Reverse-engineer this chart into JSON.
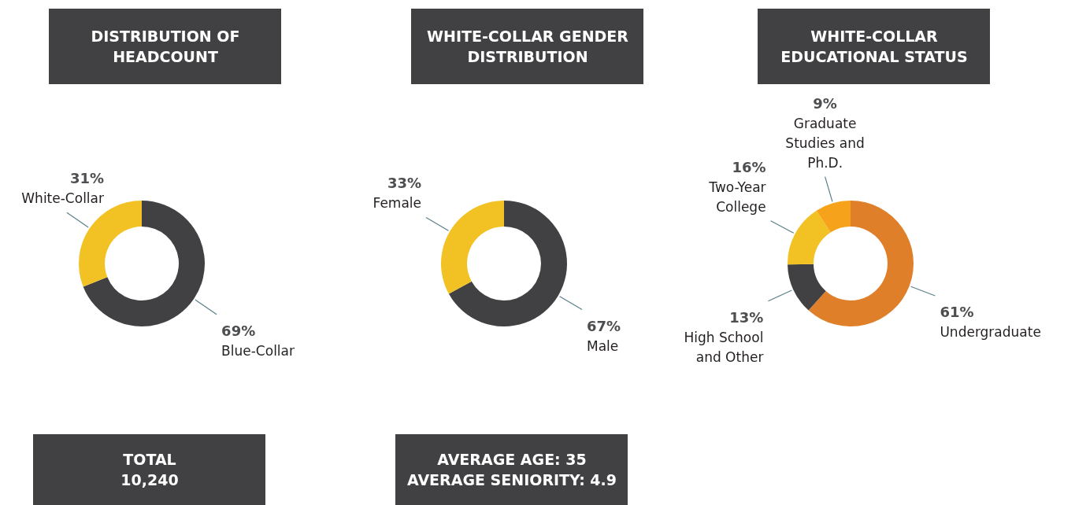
{
  "chart_data": [
    {
      "type": "donut",
      "title": "DISTRIBUTION OF HEADCOUNT",
      "categories": [
        "Blue-Collar",
        "White-Collar"
      ],
      "values": [
        69,
        31
      ],
      "value_labels": [
        "69%",
        "31%"
      ],
      "colors": [
        "#414042",
        "#f2c224"
      ]
    },
    {
      "type": "donut",
      "title": "WHITE-COLLAR GENDER DISTRIBUTION",
      "categories": [
        "Male",
        "Female"
      ],
      "values": [
        67,
        33
      ],
      "value_labels": [
        "67%",
        "33%"
      ],
      "colors": [
        "#414042",
        "#f2c224"
      ]
    },
    {
      "type": "donut",
      "title": "WHITE-COLLAR EDUCATIONAL STATUS",
      "categories": [
        "Undergraduate",
        "High School and Other",
        "Two-Year College",
        "Graduate Studies and Ph.D."
      ],
      "values": [
        61,
        13,
        16,
        9
      ],
      "value_labels": [
        "61%",
        "13%",
        "16%",
        "9%"
      ],
      "colors": [
        "#e07f2a",
        "#414042",
        "#f2c224",
        "#f7a21b"
      ]
    },
    {
      "type": "other",
      "annotations": [
        "TOTAL",
        "10,240"
      ]
    },
    {
      "type": "other",
      "annotations": [
        "AVERAGE AGE: 35",
        "AVERAGE SENIORITY: 4.9"
      ]
    }
  ]
}
